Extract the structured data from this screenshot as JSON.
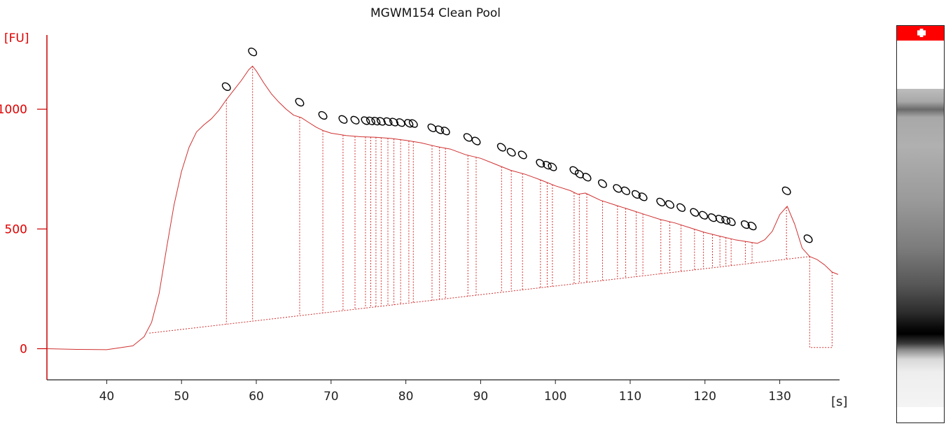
{
  "chart_data": {
    "type": "line",
    "title": "MGWM154 Clean Pool",
    "ylabel": "[FU]",
    "xlabel": "[s]",
    "xlim": [
      32,
      138
    ],
    "ylim": [
      -130,
      1310
    ],
    "x_ticks": [
      40,
      50,
      60,
      70,
      80,
      90,
      100,
      110,
      120,
      130
    ],
    "y_ticks": [
      0,
      500,
      1000
    ],
    "colors": {
      "trace": "#d03030",
      "axis": "#cc0000",
      "peak_marker": "#000000"
    },
    "series": [
      {
        "values": [
          [
            32,
            0
          ],
          [
            36,
            -3
          ],
          [
            40,
            -4
          ],
          [
            42,
            5
          ],
          [
            43.5,
            12
          ],
          [
            45,
            50
          ],
          [
            46,
            110
          ],
          [
            47,
            230
          ],
          [
            48,
            420
          ],
          [
            49,
            600
          ],
          [
            50,
            740
          ],
          [
            51,
            840
          ],
          [
            52,
            905
          ],
          [
            53,
            935
          ],
          [
            54,
            960
          ],
          [
            55,
            995
          ],
          [
            56,
            1040
          ],
          [
            57,
            1080
          ],
          [
            58,
            1120
          ],
          [
            59,
            1165
          ],
          [
            59.5,
            1180
          ],
          [
            60,
            1160
          ],
          [
            61,
            1110
          ],
          [
            62,
            1065
          ],
          [
            63,
            1030
          ],
          [
            64,
            1000
          ],
          [
            65,
            975
          ],
          [
            66,
            965
          ],
          [
            67,
            945
          ],
          [
            68,
            925
          ],
          [
            69,
            910
          ],
          [
            70,
            900
          ],
          [
            72,
            890
          ],
          [
            74,
            885
          ],
          [
            76,
            883
          ],
          [
            78,
            878
          ],
          [
            80,
            870
          ],
          [
            82,
            860
          ],
          [
            84,
            845
          ],
          [
            86,
            833
          ],
          [
            88,
            810
          ],
          [
            90,
            795
          ],
          [
            92,
            770
          ],
          [
            94,
            745
          ],
          [
            96,
            728
          ],
          [
            98,
            705
          ],
          [
            100,
            680
          ],
          [
            102,
            660
          ],
          [
            103,
            645
          ],
          [
            104,
            650
          ],
          [
            106,
            620
          ],
          [
            108,
            600
          ],
          [
            110,
            580
          ],
          [
            112,
            560
          ],
          [
            114,
            540
          ],
          [
            116,
            525
          ],
          [
            118,
            505
          ],
          [
            120,
            485
          ],
          [
            122,
            470
          ],
          [
            124,
            455
          ],
          [
            126,
            445
          ],
          [
            127,
            440
          ],
          [
            128,
            455
          ],
          [
            129,
            490
          ],
          [
            130,
            560
          ],
          [
            131,
            595
          ],
          [
            132,
            520
          ],
          [
            133,
            420
          ],
          [
            134,
            385
          ],
          [
            135,
            372
          ],
          [
            136,
            350
          ],
          [
            137,
            320
          ],
          [
            137.8,
            310
          ]
        ]
      }
    ],
    "baseline": [
      [
        45.7,
        65
      ],
      [
        134,
        385
      ]
    ],
    "baseline_drop": [
      [
        134,
        385
      ],
      [
        134,
        5
      ],
      [
        137,
        5
      ],
      [
        137,
        320
      ]
    ],
    "peaks": [
      {
        "x": 56.0,
        "y": 1030
      },
      {
        "x": 59.5,
        "y": 1175
      },
      {
        "x": 65.8,
        "y": 965
      },
      {
        "x": 68.9,
        "y": 910
      },
      {
        "x": 71.6,
        "y": 893
      },
      {
        "x": 73.2,
        "y": 890
      },
      {
        "x": 74.6,
        "y": 888
      },
      {
        "x": 75.3,
        "y": 887
      },
      {
        "x": 76.0,
        "y": 886
      },
      {
        "x": 76.7,
        "y": 885
      },
      {
        "x": 77.6,
        "y": 884
      },
      {
        "x": 78.4,
        "y": 882
      },
      {
        "x": 79.3,
        "y": 880
      },
      {
        "x": 80.4,
        "y": 877
      },
      {
        "x": 81.0,
        "y": 876
      },
      {
        "x": 83.5,
        "y": 858
      },
      {
        "x": 84.5,
        "y": 850
      },
      {
        "x": 85.3,
        "y": 845
      },
      {
        "x": 88.3,
        "y": 818
      },
      {
        "x": 89.4,
        "y": 803
      },
      {
        "x": 92.8,
        "y": 777
      },
      {
        "x": 94.1,
        "y": 756
      },
      {
        "x": 95.6,
        "y": 745
      },
      {
        "x": 98.0,
        "y": 710
      },
      {
        "x": 98.9,
        "y": 702
      },
      {
        "x": 99.6,
        "y": 695
      },
      {
        "x": 102.5,
        "y": 680
      },
      {
        "x": 103.2,
        "y": 665
      },
      {
        "x": 104.2,
        "y": 652
      },
      {
        "x": 106.3,
        "y": 625
      },
      {
        "x": 108.3,
        "y": 605
      },
      {
        "x": 109.4,
        "y": 595
      },
      {
        "x": 110.8,
        "y": 580
      },
      {
        "x": 111.7,
        "y": 570
      },
      {
        "x": 114.1,
        "y": 548
      },
      {
        "x": 115.3,
        "y": 538
      },
      {
        "x": 116.8,
        "y": 525
      },
      {
        "x": 118.6,
        "y": 505
      },
      {
        "x": 119.8,
        "y": 493
      },
      {
        "x": 121.0,
        "y": 483
      },
      {
        "x": 122.0,
        "y": 477
      },
      {
        "x": 122.8,
        "y": 472
      },
      {
        "x": 123.5,
        "y": 466
      },
      {
        "x": 125.4,
        "y": 454
      },
      {
        "x": 126.3,
        "y": 448
      },
      {
        "x": 130.9,
        "y": 595
      },
      {
        "x": 133.8,
        "y": 395
      }
    ]
  }
}
